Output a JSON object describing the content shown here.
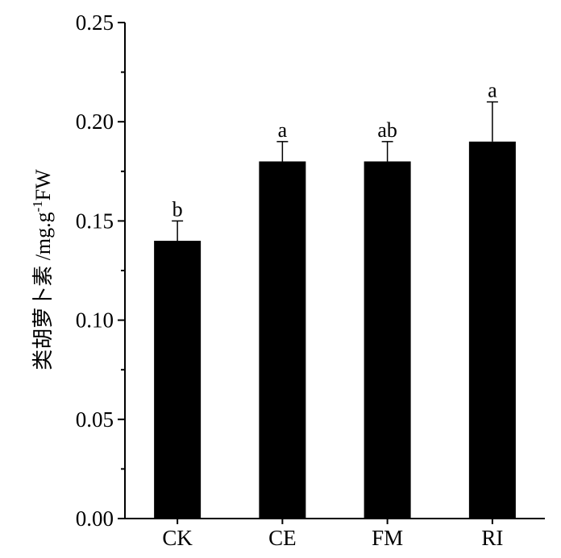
{
  "chart_data": {
    "type": "bar",
    "categories": [
      "CK",
      "CE",
      "FM",
      "RI"
    ],
    "values": [
      0.14,
      0.18,
      0.18,
      0.19
    ],
    "errors": [
      0.01,
      0.01,
      0.01,
      0.02
    ],
    "significance": [
      "b",
      "a",
      "ab",
      "a"
    ],
    "ylim": [
      0,
      0.25
    ],
    "yticks": [
      "0.00",
      "0.05",
      "0.10",
      "0.15",
      "0.20",
      "0.25"
    ],
    "ylabel": {
      "main": "类胡萝卜素 /mg.g",
      "superscript": "-1",
      "suffix": "FW"
    },
    "xlabel": "",
    "title": "",
    "bar_color": "#000000",
    "grid": false,
    "legend": "none"
  }
}
